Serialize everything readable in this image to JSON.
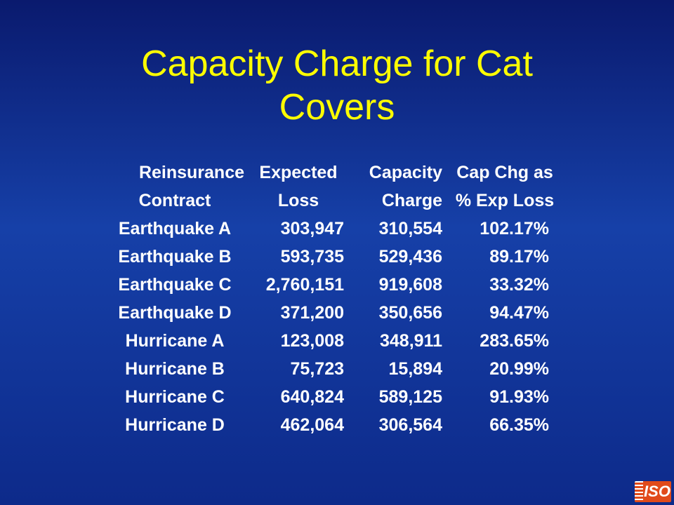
{
  "slide": {
    "title_line1": "Capacity Charge for Cat",
    "title_line2": "Covers"
  },
  "table": {
    "header": {
      "line1": {
        "contract": "Reinsurance",
        "loss": "Expected",
        "charge": "Capacity",
        "pct": "Cap Chg as"
      },
      "line2": {
        "contract": "Contract",
        "loss": "Loss",
        "charge": "Charge",
        "pct": "% Exp Loss"
      }
    },
    "rows": [
      {
        "contract": "Earthquake A",
        "loss": "303,947",
        "charge": "310,554",
        "pct": "102.17%"
      },
      {
        "contract": "Earthquake B",
        "loss": "593,735",
        "charge": "529,436",
        "pct": "89.17%"
      },
      {
        "contract": "Earthquake C",
        "loss": "2,760,151",
        "charge": "919,608",
        "pct": "33.32%"
      },
      {
        "contract": "Earthquake D",
        "loss": "371,200",
        "charge": "350,656",
        "pct": "94.47%"
      },
      {
        "contract": "Hurricane A",
        "loss": "123,008",
        "charge": "348,911",
        "pct": "283.65%"
      },
      {
        "contract": "Hurricane B",
        "loss": "75,723",
        "charge": "15,894",
        "pct": "20.99%"
      },
      {
        "contract": "Hurricane C",
        "loss": "640,824",
        "charge": "589,125",
        "pct": "91.93%"
      },
      {
        "contract": "Hurricane D",
        "loss": "462,064",
        "charge": "306,564",
        "pct": "66.35%"
      }
    ]
  },
  "logo": {
    "text": "ISO",
    "color": "#e14a1a"
  },
  "colors": {
    "title": "#ffff00",
    "text": "#ffffff",
    "background": "#1640a8"
  }
}
